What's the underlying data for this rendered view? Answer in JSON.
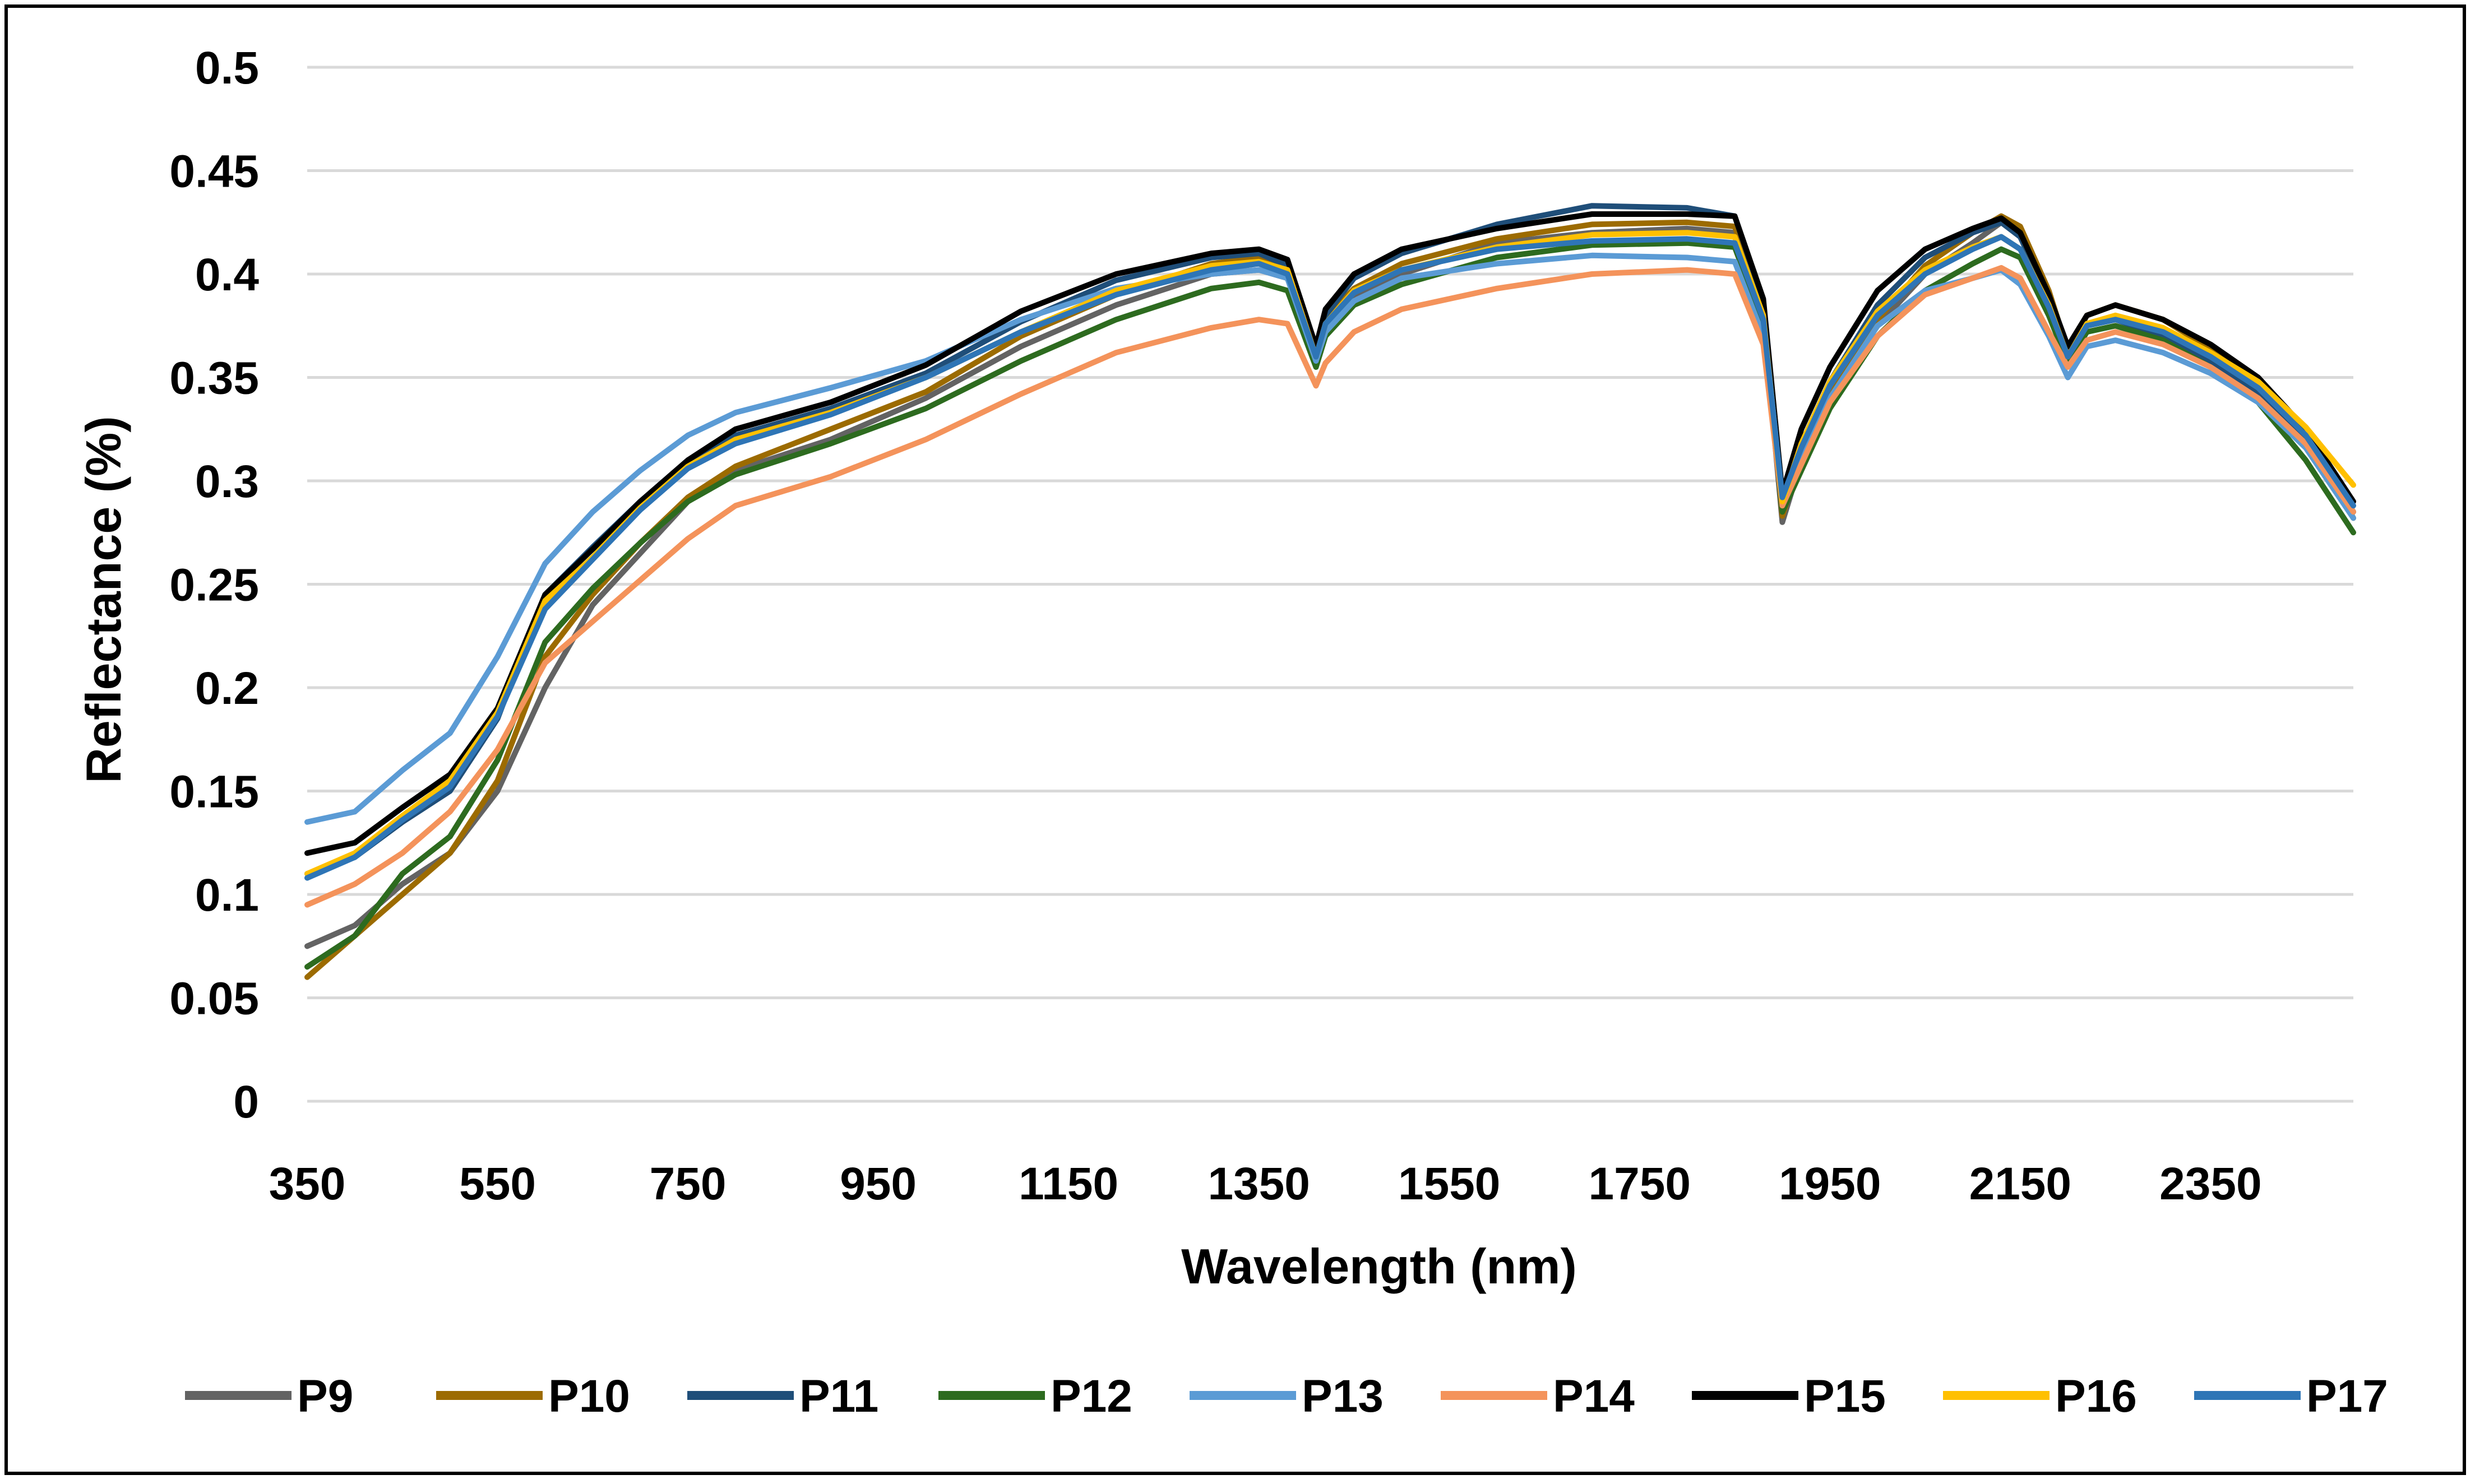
{
  "chart_data": {
    "type": "line",
    "title": "",
    "xlabel": "Wavelength (nm)",
    "ylabel": "Reflectance (%)",
    "xlim": [
      350,
      2500
    ],
    "ylim": [
      0,
      0.5
    ],
    "grid": true,
    "legend_position": "bottom",
    "x_ticks": [
      350,
      550,
      750,
      950,
      1150,
      1350,
      1550,
      1750,
      1950,
      2150,
      2350
    ],
    "x_tick_labels": [
      "350",
      "550",
      "750",
      "950",
      "1150",
      "1350",
      "1550",
      "1750",
      "1950",
      "2150",
      "2350"
    ],
    "y_ticks": [
      0,
      0.05,
      0.1,
      0.15,
      0.2,
      0.25,
      0.3,
      0.35,
      0.4,
      0.45,
      0.5
    ],
    "y_tick_labels": [
      "0",
      "0.05",
      "0.1",
      "0.15",
      "0.2",
      "0.25",
      "0.3",
      "0.35",
      "0.4",
      "0.45",
      "0.5"
    ],
    "x": [
      350,
      400,
      450,
      500,
      550,
      600,
      650,
      700,
      750,
      800,
      900,
      1000,
      1100,
      1200,
      1300,
      1350,
      1380,
      1410,
      1420,
      1450,
      1500,
      1600,
      1700,
      1800,
      1850,
      1880,
      1900,
      1920,
      1950,
      2000,
      2050,
      2100,
      2130,
      2150,
      2180,
      2200,
      2220,
      2250,
      2300,
      2350,
      2400,
      2450,
      2500
    ],
    "series": [
      {
        "name": "P9",
        "color": "#636363",
        "values": [
          0.075,
          0.085,
          0.105,
          0.12,
          0.15,
          0.2,
          0.24,
          0.265,
          0.29,
          0.305,
          0.32,
          0.34,
          0.365,
          0.385,
          0.4,
          0.402,
          0.398,
          0.36,
          0.375,
          0.39,
          0.4,
          0.415,
          0.42,
          0.422,
          0.42,
          0.38,
          0.28,
          0.31,
          0.34,
          0.375,
          0.4,
          0.415,
          0.425,
          0.42,
          0.39,
          0.36,
          0.375,
          0.378,
          0.372,
          0.36,
          0.345,
          0.32,
          0.285
        ]
      },
      {
        "name": "P10",
        "color": "#9c6b00",
        "values": [
          0.06,
          0.08,
          0.1,
          0.12,
          0.155,
          0.215,
          0.245,
          0.27,
          0.292,
          0.307,
          0.325,
          0.343,
          0.37,
          0.39,
          0.405,
          0.408,
          0.404,
          0.362,
          0.378,
          0.393,
          0.405,
          0.417,
          0.424,
          0.425,
          0.423,
          0.384,
          0.283,
          0.312,
          0.342,
          0.378,
          0.404,
          0.42,
          0.428,
          0.423,
          0.392,
          0.363,
          0.38,
          0.385,
          0.378,
          0.364,
          0.348,
          0.322,
          0.282
        ]
      },
      {
        "name": "P11",
        "color": "#1f4e79",
        "values": [
          0.11,
          0.118,
          0.135,
          0.15,
          0.185,
          0.245,
          0.268,
          0.29,
          0.31,
          0.322,
          0.335,
          0.352,
          0.377,
          0.397,
          0.408,
          0.41,
          0.404,
          0.363,
          0.38,
          0.398,
          0.41,
          0.424,
          0.433,
          0.432,
          0.428,
          0.387,
          0.292,
          0.318,
          0.348,
          0.385,
          0.408,
          0.42,
          0.425,
          0.418,
          0.388,
          0.36,
          0.375,
          0.378,
          0.37,
          0.358,
          0.342,
          0.318,
          0.285
        ]
      },
      {
        "name": "P12",
        "color": "#2d6b1f",
        "values": [
          0.065,
          0.08,
          0.11,
          0.128,
          0.165,
          0.222,
          0.248,
          0.27,
          0.29,
          0.303,
          0.318,
          0.335,
          0.358,
          0.378,
          0.393,
          0.396,
          0.392,
          0.355,
          0.37,
          0.385,
          0.395,
          0.408,
          0.414,
          0.415,
          0.413,
          0.376,
          0.285,
          0.305,
          0.335,
          0.37,
          0.392,
          0.405,
          0.412,
          0.408,
          0.38,
          0.357,
          0.372,
          0.375,
          0.368,
          0.355,
          0.338,
          0.31,
          0.275
        ]
      },
      {
        "name": "P13",
        "color": "#5b9bd5",
        "values": [
          0.135,
          0.14,
          0.16,
          0.178,
          0.215,
          0.26,
          0.285,
          0.305,
          0.322,
          0.333,
          0.345,
          0.358,
          0.378,
          0.393,
          0.4,
          0.402,
          0.398,
          0.358,
          0.372,
          0.387,
          0.398,
          0.405,
          0.409,
          0.408,
          0.406,
          0.37,
          0.29,
          0.31,
          0.34,
          0.375,
          0.392,
          0.398,
          0.402,
          0.395,
          0.37,
          0.35,
          0.365,
          0.368,
          0.362,
          0.352,
          0.338,
          0.316,
          0.282
        ]
      },
      {
        "name": "P14",
        "color": "#f4935b",
        "values": [
          0.095,
          0.105,
          0.12,
          0.14,
          0.17,
          0.212,
          0.232,
          0.252,
          0.272,
          0.288,
          0.302,
          0.32,
          0.342,
          0.362,
          0.374,
          0.378,
          0.376,
          0.346,
          0.357,
          0.372,
          0.383,
          0.393,
          0.4,
          0.402,
          0.4,
          0.366,
          0.288,
          0.308,
          0.338,
          0.37,
          0.39,
          0.398,
          0.403,
          0.398,
          0.372,
          0.355,
          0.368,
          0.372,
          0.366,
          0.355,
          0.34,
          0.318,
          0.285
        ]
      },
      {
        "name": "P15",
        "color": "#000000",
        "values": [
          0.12,
          0.125,
          0.142,
          0.158,
          0.19,
          0.245,
          0.267,
          0.29,
          0.31,
          0.325,
          0.338,
          0.356,
          0.382,
          0.4,
          0.41,
          0.412,
          0.407,
          0.365,
          0.383,
          0.4,
          0.412,
          0.422,
          0.429,
          0.429,
          0.428,
          0.388,
          0.294,
          0.325,
          0.355,
          0.392,
          0.412,
          0.422,
          0.427,
          0.42,
          0.39,
          0.365,
          0.38,
          0.385,
          0.378,
          0.366,
          0.35,
          0.325,
          0.29
        ]
      },
      {
        "name": "P16",
        "color": "#ffc000",
        "values": [
          0.11,
          0.12,
          0.138,
          0.155,
          0.188,
          0.242,
          0.263,
          0.287,
          0.307,
          0.32,
          0.333,
          0.35,
          0.372,
          0.392,
          0.404,
          0.406,
          0.402,
          0.36,
          0.376,
          0.392,
          0.402,
          0.413,
          0.419,
          0.42,
          0.418,
          0.38,
          0.29,
          0.318,
          0.348,
          0.382,
          0.402,
          0.413,
          0.418,
          0.412,
          0.385,
          0.36,
          0.376,
          0.38,
          0.374,
          0.362,
          0.348,
          0.326,
          0.298
        ]
      },
      {
        "name": "P17",
        "color": "#2e75b6",
        "values": [
          0.108,
          0.118,
          0.136,
          0.152,
          0.186,
          0.238,
          0.262,
          0.286,
          0.306,
          0.318,
          0.332,
          0.35,
          0.372,
          0.39,
          0.402,
          0.405,
          0.4,
          0.36,
          0.376,
          0.391,
          0.402,
          0.412,
          0.416,
          0.417,
          0.415,
          0.378,
          0.292,
          0.316,
          0.346,
          0.38,
          0.4,
          0.412,
          0.418,
          0.412,
          0.384,
          0.36,
          0.375,
          0.378,
          0.372,
          0.36,
          0.345,
          0.322,
          0.288
        ]
      }
    ]
  }
}
